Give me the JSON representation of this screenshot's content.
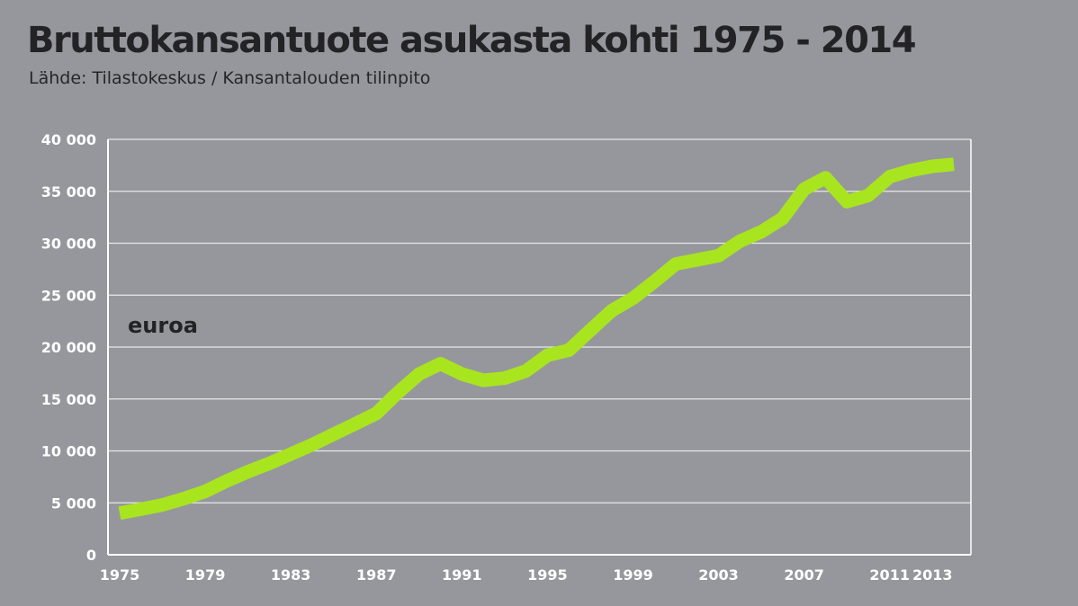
{
  "chart_data": {
    "type": "line",
    "title": "Bruttokansantuote asukasta kohti 1975 - 2014",
    "subtitle": "Lähde: Tilastokeskus / Kansantalouden tilinpito",
    "unit_label": "euroa",
    "ylim": [
      0,
      40000
    ],
    "yticks": [
      0,
      5000,
      10000,
      15000,
      20000,
      25000,
      30000,
      35000,
      40000
    ],
    "ytick_labels": [
      "0",
      "5 000",
      "10 000",
      "15 000",
      "20 000",
      "25 000",
      "30 000",
      "35 000",
      "40 000"
    ],
    "xlim": [
      1975,
      2014
    ],
    "xticks": [
      1975,
      1979,
      1983,
      1987,
      1991,
      1995,
      1999,
      2003,
      2007,
      2011,
      2013
    ],
    "xtick_labels": [
      "1975",
      "1979",
      "1983",
      "1987",
      "1991",
      "1995",
      "1999",
      "2003",
      "2007",
      "2011",
      "2013"
    ],
    "grid": true,
    "line_color": "#a8e51f",
    "series": [
      {
        "x": [
          1975,
          1976,
          1977,
          1978,
          1979,
          1980,
          1981,
          1982,
          1983,
          1984,
          1985,
          1986,
          1987,
          1988,
          1989,
          1990,
          1991,
          1992,
          1993,
          1994,
          1995,
          1996,
          1997,
          1998,
          1999,
          2000,
          2001,
          2002,
          2003,
          2004,
          2005,
          2006,
          2007,
          2008,
          2009,
          2010,
          2011,
          2012,
          2013,
          2014
        ],
        "values": [
          4000,
          4400,
          4800,
          5400,
          6100,
          7100,
          8000,
          8800,
          9700,
          10600,
          11600,
          12600,
          13600,
          15600,
          17400,
          18400,
          17400,
          16800,
          17000,
          17700,
          19200,
          19700,
          21600,
          23500,
          24700,
          26300,
          28000,
          28400,
          28800,
          30200,
          31100,
          32400,
          35200,
          36300,
          34000,
          34600,
          36400,
          37000,
          37400,
          37600
        ]
      }
    ]
  }
}
